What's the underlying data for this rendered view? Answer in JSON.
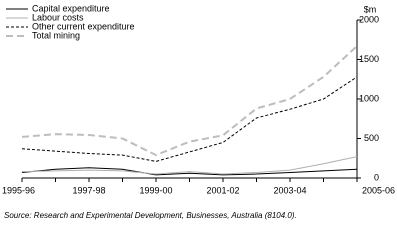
{
  "chart_data": {
    "type": "line",
    "y_label": "$m",
    "source": "Source: Research and Experimental Development, Businesses, Australia (8104.0).",
    "categories": [
      "1995-96",
      null,
      "1997-98",
      null,
      "1999-00",
      null,
      "2001-02",
      null,
      "2003-04",
      null,
      "2005-06"
    ],
    "series": [
      {
        "name": "Capital expenditure",
        "color": "#000000",
        "line_style": "solid",
        "values": [
          70,
          110,
          130,
          110,
          40,
          60,
          40,
          50,
          70,
          90,
          110
        ]
      },
      {
        "name": "Labour costs",
        "color": "#b0b0b0",
        "line_style": "solid",
        "values": [
          80,
          90,
          100,
          90,
          50,
          80,
          50,
          70,
          100,
          180,
          270
        ]
      },
      {
        "name": "Other current expenditure",
        "color": "#000000",
        "line_style": "dotted",
        "values": [
          370,
          340,
          310,
          290,
          210,
          330,
          450,
          760,
          870,
          1000,
          1280
        ]
      },
      {
        "name": "Total mining",
        "color": "#bdbdbd",
        "line_style": "dashed",
        "values": [
          520,
          555,
          545,
          500,
          290,
          460,
          540,
          880,
          1000,
          1280,
          1670
        ]
      }
    ],
    "ylim": [
      0,
      2000
    ],
    "yticks": [
      0,
      500,
      1000,
      1500,
      2000
    ],
    "legend": "upper left"
  }
}
